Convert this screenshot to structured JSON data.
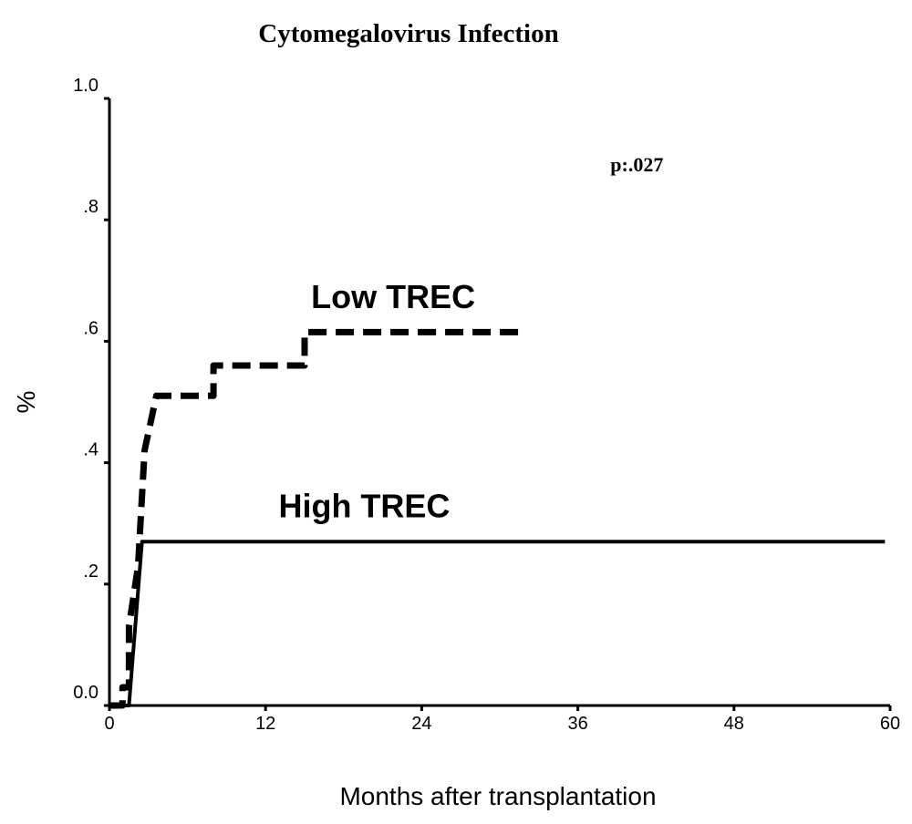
{
  "chart_data": {
    "type": "line",
    "title": "Cytomegalovirus Infection",
    "xlabel": "Months after transplantation",
    "ylabel": "%",
    "xlim": [
      0,
      60
    ],
    "ylim": [
      0,
      1.0
    ],
    "x_ticks": [
      0,
      12,
      24,
      36,
      48,
      60
    ],
    "x_tick_labels": [
      "0",
      "12",
      "24",
      "36",
      "48",
      "60"
    ],
    "y_ticks": [
      0,
      0.2,
      0.4,
      0.6,
      0.8,
      1.0
    ],
    "y_tick_labels": [
      "0.0",
      ".2",
      ".4",
      ".6",
      ".8",
      "1.0"
    ],
    "grid": false,
    "annotations": [
      {
        "text": "p:.027",
        "x": 38.5,
        "y": 0.88
      }
    ],
    "series": [
      {
        "name": "Low TREC",
        "style": "dashed",
        "step": true,
        "label_at": {
          "x": 15.5,
          "y": 0.655
        },
        "points": [
          [
            0,
            0
          ],
          [
            1.0,
            0
          ],
          [
            1.0,
            0.03
          ],
          [
            1.5,
            0.03
          ],
          [
            1.5,
            0.13
          ],
          [
            2.2,
            0.23
          ],
          [
            2.7,
            0.42
          ],
          [
            3.6,
            0.51
          ],
          [
            8.0,
            0.51
          ],
          [
            8.0,
            0.56
          ],
          [
            15.0,
            0.56
          ],
          [
            15.0,
            0.615
          ],
          [
            32.0,
            0.615
          ]
        ]
      },
      {
        "name": "High TREC",
        "style": "solid",
        "step": true,
        "label_at": {
          "x": 13,
          "y": 0.31
        },
        "points": [
          [
            0,
            0
          ],
          [
            1.5,
            0
          ],
          [
            2.5,
            0.27
          ],
          [
            59.6,
            0.27
          ]
        ]
      }
    ]
  }
}
